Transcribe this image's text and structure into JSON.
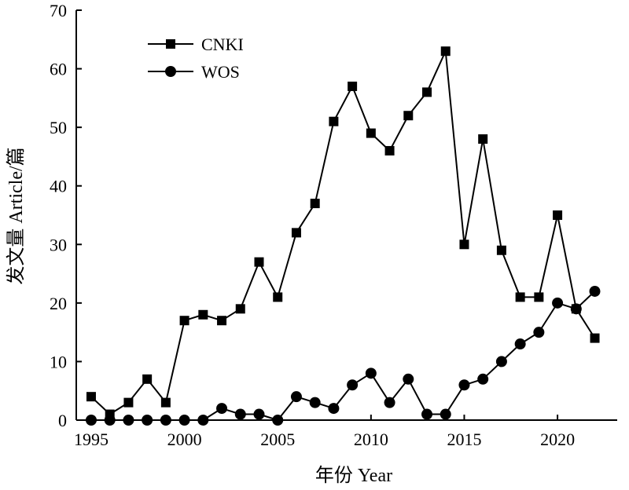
{
  "chart_data": {
    "type": "line",
    "title": "",
    "xlabel": "年份 Year",
    "ylabel": "发文量 Article/篇",
    "xlim": [
      1994.2,
      2023.2
    ],
    "ylim": [
      0,
      70
    ],
    "xticks": [
      1995,
      2000,
      2005,
      2010,
      2015,
      2020
    ],
    "yticks": [
      0,
      10,
      20,
      30,
      40,
      50,
      60,
      70
    ],
    "xtick_labels": [
      "1995",
      "2000",
      "2005",
      "2010",
      "2015",
      "2020"
    ],
    "ytick_labels": [
      "0",
      "10",
      "20",
      "30",
      "40",
      "50",
      "60",
      "70"
    ],
    "grid": false,
    "legend_position": "top-left",
    "x": [
      1995,
      1996,
      1997,
      1998,
      1999,
      2000,
      2001,
      2002,
      2003,
      2004,
      2005,
      2006,
      2007,
      2008,
      2009,
      2010,
      2011,
      2012,
      2013,
      2014,
      2015,
      2016,
      2017,
      2018,
      2019,
      2020,
      2021,
      2022
    ],
    "series": [
      {
        "name": "CNKI",
        "marker": "square",
        "color": "#000000",
        "values": [
          4,
          1,
          3,
          7,
          3,
          17,
          18,
          17,
          19,
          27,
          21,
          32,
          37,
          51,
          57,
          49,
          46,
          52,
          56,
          63,
          30,
          48,
          29,
          21,
          21,
          35,
          19,
          14
        ]
      },
      {
        "name": "WOS",
        "marker": "circle",
        "color": "#000000",
        "values": [
          0,
          0,
          0,
          0,
          0,
          0,
          0,
          2,
          1,
          1,
          0,
          4,
          3,
          2,
          6,
          8,
          3,
          7,
          1,
          1,
          6,
          7,
          10,
          13,
          15,
          20,
          19,
          22
        ]
      }
    ]
  }
}
